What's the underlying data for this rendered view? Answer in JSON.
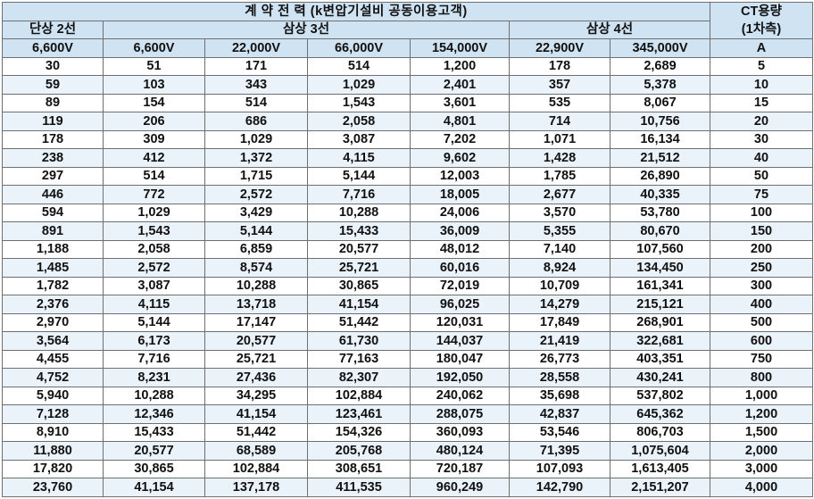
{
  "header": {
    "title": "계  약  전  력  (k변압기설비 공동이용고객)",
    "ct_title": "CT용량",
    "ct_sub": "(1차측)",
    "single_phase_2wire": "단상 2선",
    "three_phase_3wire": "삼상 3선",
    "three_phase_4wire": "삼상 4선",
    "voltages": [
      "6,600V",
      "6,600V",
      "22,000V",
      "66,000V",
      "154,000V",
      "22,900V",
      "345,000V"
    ],
    "ct_unit": "A"
  },
  "rows": [
    [
      "30",
      "51",
      "171",
      "514",
      "1,200",
      "178",
      "2,689",
      "5"
    ],
    [
      "59",
      "103",
      "343",
      "1,029",
      "2,401",
      "357",
      "5,378",
      "10"
    ],
    [
      "89",
      "154",
      "514",
      "1,543",
      "3,601",
      "535",
      "8,067",
      "15"
    ],
    [
      "119",
      "206",
      "686",
      "2,058",
      "4,801",
      "714",
      "10,756",
      "20"
    ],
    [
      "178",
      "309",
      "1,029",
      "3,087",
      "7,202",
      "1,071",
      "16,134",
      "30"
    ],
    [
      "238",
      "412",
      "1,372",
      "4,115",
      "9,602",
      "1,428",
      "21,512",
      "40"
    ],
    [
      "297",
      "514",
      "1,715",
      "5,144",
      "12,003",
      "1,785",
      "26,890",
      "50"
    ],
    [
      "446",
      "772",
      "2,572",
      "7,716",
      "18,005",
      "2,677",
      "40,335",
      "75"
    ],
    [
      "594",
      "1,029",
      "3,429",
      "10,288",
      "24,006",
      "3,570",
      "53,780",
      "100"
    ],
    [
      "891",
      "1,543",
      "5,144",
      "15,433",
      "36,009",
      "5,355",
      "80,670",
      "150"
    ],
    [
      "1,188",
      "2,058",
      "6,859",
      "20,577",
      "48,012",
      "7,140",
      "107,560",
      "200"
    ],
    [
      "1,485",
      "2,572",
      "8,574",
      "25,721",
      "60,016",
      "8,924",
      "134,450",
      "250"
    ],
    [
      "1,782",
      "3,087",
      "10,288",
      "30,865",
      "72,019",
      "10,709",
      "161,341",
      "300"
    ],
    [
      "2,376",
      "4,115",
      "13,718",
      "41,154",
      "96,025",
      "14,279",
      "215,121",
      "400"
    ],
    [
      "2,970",
      "5,144",
      "17,147",
      "51,442",
      "120,031",
      "17,849",
      "268,901",
      "500"
    ],
    [
      "3,564",
      "6,173",
      "20,577",
      "61,730",
      "144,037",
      "21,419",
      "322,681",
      "600"
    ],
    [
      "4,455",
      "7,716",
      "25,721",
      "77,163",
      "180,047",
      "26,773",
      "403,351",
      "750"
    ],
    [
      "4,752",
      "8,231",
      "27,436",
      "82,307",
      "192,050",
      "28,558",
      "430,241",
      "800"
    ],
    [
      "5,940",
      "10,288",
      "34,295",
      "102,884",
      "240,062",
      "35,698",
      "537,802",
      "1,000"
    ],
    [
      "7,128",
      "12,346",
      "41,154",
      "123,461",
      "288,075",
      "42,837",
      "645,362",
      "1,200"
    ],
    [
      "8,910",
      "15,433",
      "51,442",
      "154,326",
      "360,093",
      "53,546",
      "806,703",
      "1,500"
    ],
    [
      "11,880",
      "20,577",
      "68,589",
      "205,768",
      "480,124",
      "71,395",
      "1,075,604",
      "2,000"
    ],
    [
      "17,820",
      "30,865",
      "102,884",
      "308,651",
      "720,187",
      "107,093",
      "1,613,405",
      "3,000"
    ],
    [
      "23,760",
      "41,154",
      "137,178",
      "411,535",
      "960,249",
      "142,790",
      "2,151,207",
      "4,000"
    ]
  ]
}
